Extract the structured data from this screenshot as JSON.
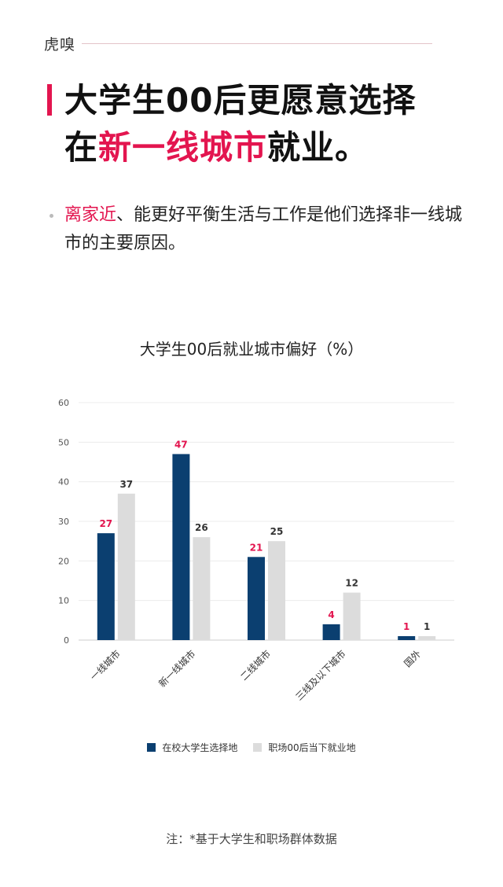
{
  "brand": {
    "logo_text": "虎嗅"
  },
  "headline": {
    "line1": "大学生00后更愿意选择",
    "line2_prefix": "在",
    "line2_accent": "新一线城市",
    "line2_suffix": "就业。"
  },
  "subtitle": {
    "accent": "离家近",
    "rest": "、能更好平衡生活与工作是他们选择非一线城市的主要原因。"
  },
  "chart_data": {
    "type": "bar",
    "title": "大学生00后就业城市偏好（%）",
    "categories": [
      "一线城市",
      "新一线城市",
      "二线城市",
      "三线及以下城市",
      "国外"
    ],
    "series": [
      {
        "name": "在校大学生选择地",
        "values": [
          27,
          47,
          21,
          4,
          1
        ],
        "color": "#0b3f70",
        "label_color": "#e3154f"
      },
      {
        "name": "职场00后当下就业地",
        "values": [
          37,
          26,
          25,
          12,
          1
        ],
        "color": "#dcdcdc",
        "label_color": "#333333"
      }
    ],
    "ylim": [
      0,
      60
    ],
    "yticks": [
      0,
      10,
      20,
      30,
      40,
      50,
      60
    ],
    "grid": true,
    "legend_position": "bottom"
  },
  "note": "注：*基于大学生和职场群体数据"
}
